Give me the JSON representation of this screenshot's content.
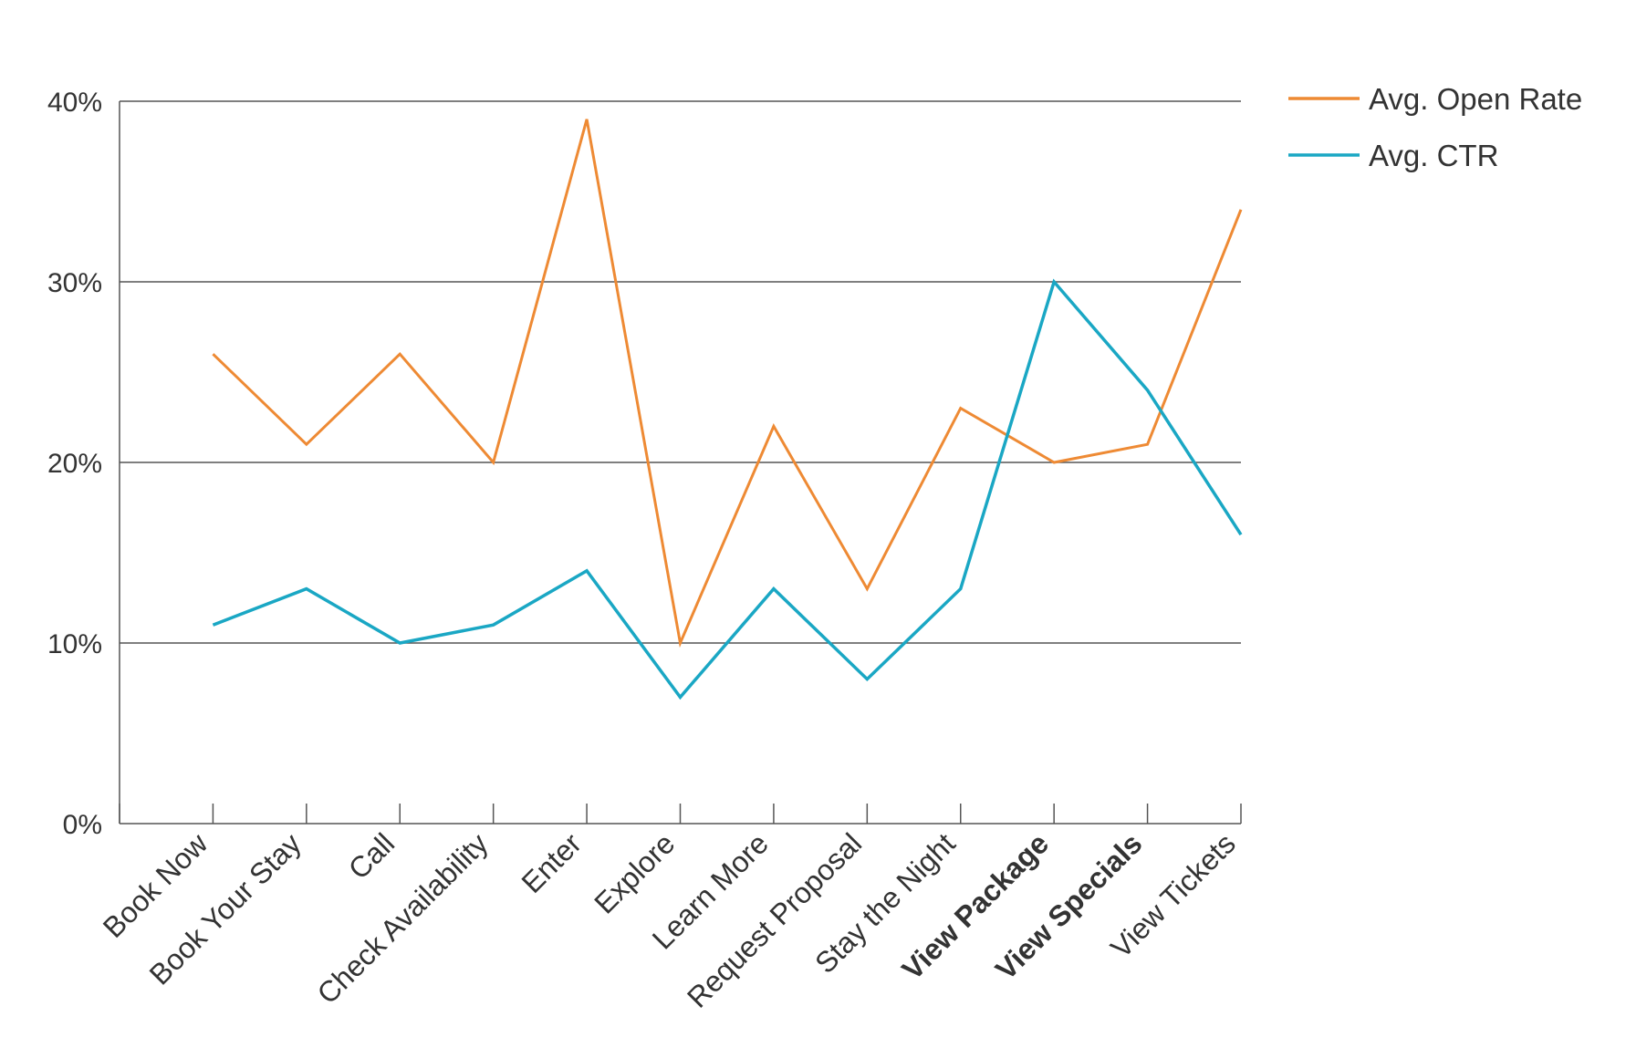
{
  "chart_data": {
    "type": "line",
    "categories": [
      "Book Now",
      "Book Your Stay",
      "Call",
      "Check Availability",
      "Enter",
      "Explore",
      "Learn More",
      "Request Proposal",
      "Stay the Night",
      "View Package",
      "View Specials",
      "View Tickets"
    ],
    "bold_categories": [
      "View Package",
      "View Specials"
    ],
    "series": [
      {
        "name": "Avg. Open Rate",
        "color": "#ee8a34",
        "values": [
          26,
          21,
          26,
          20,
          39,
          10,
          22,
          13,
          23,
          20,
          21,
          34
        ]
      },
      {
        "name": "Avg. CTR",
        "color": "#1aa7c4",
        "values": [
          11,
          13,
          10,
          11,
          14,
          7,
          13,
          8,
          13,
          30,
          24,
          16
        ]
      }
    ],
    "y_ticks": [
      "0%",
      "10%",
      "20%",
      "30%",
      "40%"
    ],
    "ylim": [
      0,
      40
    ],
    "grid": true,
    "legend": "top-right"
  }
}
